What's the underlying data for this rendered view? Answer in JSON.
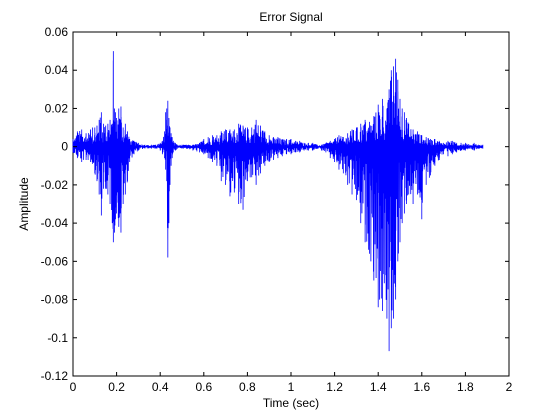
{
  "chart_data": {
    "type": "line",
    "title": "Error Signal",
    "xlabel": "Time (sec)",
    "ylabel": "Amplitude",
    "xlim": [
      0,
      2
    ],
    "ylim": [
      -0.12,
      0.06
    ],
    "xticks": [
      0,
      0.2,
      0.4,
      0.6,
      0.8,
      1,
      1.2,
      1.4,
      1.6,
      1.8,
      2
    ],
    "xtick_labels": [
      "0",
      "0.2",
      "0.4",
      "0.6",
      "0.8",
      "1",
      "1.2",
      "1.4",
      "1.6",
      "1.8",
      "2"
    ],
    "yticks": [
      -0.12,
      -0.1,
      -0.08,
      -0.06,
      -0.04,
      -0.02,
      0,
      0.02,
      0.04,
      0.06
    ],
    "ytick_labels": [
      "-0.12",
      "-0.1",
      "-0.08",
      "-0.06",
      "-0.04",
      "-0.02",
      "0",
      "0.02",
      "0.04",
      "0.06"
    ],
    "grid": false,
    "line_color": "#0000ff",
    "series": [
      {
        "x": [
          0.0,
          0.02,
          0.04,
          0.06,
          0.08,
          0.09,
          0.1,
          0.11,
          0.12,
          0.13,
          0.14,
          0.15,
          0.16,
          0.17,
          0.18,
          0.185,
          0.19,
          0.195,
          0.2,
          0.21,
          0.22,
          0.23,
          0.24,
          0.25,
          0.26,
          0.28,
          0.3,
          0.33,
          0.36,
          0.38,
          0.4,
          0.41,
          0.42,
          0.425,
          0.43,
          0.435,
          0.44,
          0.445,
          0.45,
          0.455,
          0.46,
          0.47,
          0.48,
          0.5,
          0.52,
          0.55,
          0.58,
          0.6,
          0.62,
          0.64,
          0.66,
          0.68,
          0.7,
          0.72,
          0.74,
          0.76,
          0.78,
          0.8,
          0.82,
          0.84,
          0.86,
          0.88,
          0.9,
          0.92,
          0.94,
          0.96,
          0.98,
          1.0,
          1.02,
          1.04,
          1.06,
          1.08,
          1.1,
          1.12,
          1.14,
          1.16,
          1.18,
          1.2,
          1.22,
          1.24,
          1.26,
          1.28,
          1.3,
          1.32,
          1.34,
          1.36,
          1.38,
          1.4,
          1.42,
          1.44,
          1.45,
          1.46,
          1.47,
          1.48,
          1.49,
          1.5,
          1.51,
          1.52,
          1.53,
          1.54,
          1.56,
          1.58,
          1.6,
          1.62,
          1.64,
          1.66,
          1.68,
          1.7,
          1.72,
          1.74,
          1.76,
          1.78,
          1.8,
          1.82,
          1.84,
          1.86,
          1.88
        ],
        "ymax": [
          0.004,
          0.008,
          0.009,
          0.007,
          0.009,
          0.01,
          0.01,
          0.011,
          0.014,
          0.018,
          0.012,
          0.011,
          0.012,
          0.014,
          0.012,
          0.05,
          0.02,
          0.018,
          0.015,
          0.02,
          0.021,
          0.01,
          0.012,
          0.008,
          0.004,
          0.003,
          0.002,
          0.001,
          0.001,
          0.001,
          0.002,
          0.003,
          0.008,
          0.018,
          0.02,
          0.024,
          0.015,
          0.01,
          0.007,
          0.005,
          0.003,
          0.002,
          0.001,
          0.001,
          0.001,
          0.001,
          0.002,
          0.004,
          0.005,
          0.006,
          0.006,
          0.008,
          0.009,
          0.009,
          0.009,
          0.012,
          0.011,
          0.01,
          0.01,
          0.014,
          0.011,
          0.008,
          0.006,
          0.005,
          0.005,
          0.004,
          0.004,
          0.004,
          0.003,
          0.003,
          0.002,
          0.002,
          0.002,
          0.001,
          0.001,
          0.002,
          0.003,
          0.004,
          0.006,
          0.005,
          0.007,
          0.009,
          0.01,
          0.012,
          0.014,
          0.013,
          0.016,
          0.022,
          0.025,
          0.02,
          0.03,
          0.04,
          0.042,
          0.046,
          0.035,
          0.025,
          0.02,
          0.018,
          0.015,
          0.012,
          0.009,
          0.008,
          0.006,
          0.005,
          0.004,
          0.004,
          0.003,
          0.002,
          0.003,
          0.003,
          0.002,
          0.002,
          0.002,
          0.001,
          0.002,
          0.001,
          0.001
        ],
        "ymin": [
          -0.003,
          -0.006,
          -0.008,
          -0.007,
          -0.008,
          -0.009,
          -0.014,
          -0.018,
          -0.025,
          -0.036,
          -0.022,
          -0.022,
          -0.025,
          -0.03,
          -0.04,
          -0.05,
          -0.045,
          -0.038,
          -0.035,
          -0.042,
          -0.045,
          -0.03,
          -0.025,
          -0.018,
          -0.008,
          -0.004,
          -0.002,
          -0.001,
          -0.001,
          -0.001,
          -0.002,
          -0.004,
          -0.006,
          -0.012,
          -0.018,
          -0.058,
          -0.04,
          -0.02,
          -0.01,
          -0.006,
          -0.003,
          -0.002,
          -0.001,
          -0.001,
          -0.001,
          -0.002,
          -0.003,
          -0.004,
          -0.006,
          -0.008,
          -0.01,
          -0.018,
          -0.02,
          -0.026,
          -0.024,
          -0.03,
          -0.033,
          -0.018,
          -0.016,
          -0.02,
          -0.014,
          -0.01,
          -0.008,
          -0.007,
          -0.006,
          -0.005,
          -0.004,
          -0.004,
          -0.003,
          -0.003,
          -0.002,
          -0.002,
          -0.002,
          -0.001,
          -0.002,
          -0.003,
          -0.006,
          -0.008,
          -0.012,
          -0.014,
          -0.02,
          -0.025,
          -0.028,
          -0.04,
          -0.05,
          -0.056,
          -0.07,
          -0.084,
          -0.086,
          -0.09,
          -0.107,
          -0.095,
          -0.09,
          -0.08,
          -0.06,
          -0.05,
          -0.04,
          -0.035,
          -0.03,
          -0.025,
          -0.03,
          -0.025,
          -0.038,
          -0.02,
          -0.015,
          -0.01,
          -0.007,
          -0.004,
          -0.005,
          -0.004,
          -0.003,
          -0.002,
          -0.002,
          -0.001,
          -0.002,
          -0.001,
          -0.001
        ]
      }
    ]
  }
}
